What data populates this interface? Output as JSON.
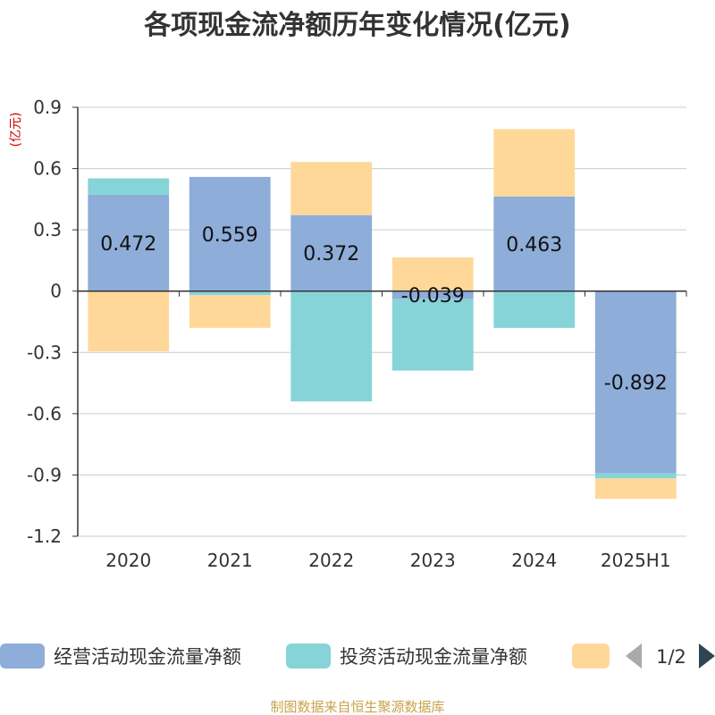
{
  "chart_data": {
    "type": "bar",
    "stacked": true,
    "title": "各项现金流净额历年变化情况(亿元)",
    "ylabel": "(亿元)",
    "categories": [
      "2020",
      "2021",
      "2022",
      "2023",
      "2024",
      "2025H1"
    ],
    "ylim": [
      -1.2,
      0.9
    ],
    "yticks": [
      0.9,
      0.6,
      0.3,
      0,
      -0.3,
      -0.6,
      -0.9,
      -1.2
    ],
    "ytick_labels": [
      "0.9",
      "0.6",
      "0.3",
      "0",
      "-0.3",
      "-0.6",
      "-0.9",
      "-1.2"
    ],
    "grid": true,
    "legend_position": "bottom",
    "series": [
      {
        "name": "经营活动现金流量净额",
        "color": "#8eadd9",
        "values": [
          0.472,
          0.559,
          0.372,
          -0.039,
          0.463,
          -0.892
        ],
        "labels": [
          "0.472",
          "0.559",
          "0.372",
          "-0.039",
          "0.463",
          "-0.892"
        ]
      },
      {
        "name": "投资活动现金流量净额",
        "color": "#86d4d8",
        "values": [
          0.08,
          -0.02,
          -0.54,
          -0.35,
          -0.18,
          -0.025
        ]
      },
      {
        "name": "",
        "color": "#ffd899",
        "values": [
          -0.295,
          -0.16,
          0.26,
          0.165,
          0.33,
          -0.1
        ]
      }
    ]
  },
  "legend": {
    "items": [
      {
        "label": "经营活动现金流量净额",
        "color": "#8eadd9"
      },
      {
        "label": "投资活动现金流量净额",
        "color": "#86d4d8"
      },
      {
        "label": "",
        "color": "#ffd899"
      }
    ],
    "pager": "1/2"
  },
  "source": "制图数据来自恒生聚源数据库"
}
